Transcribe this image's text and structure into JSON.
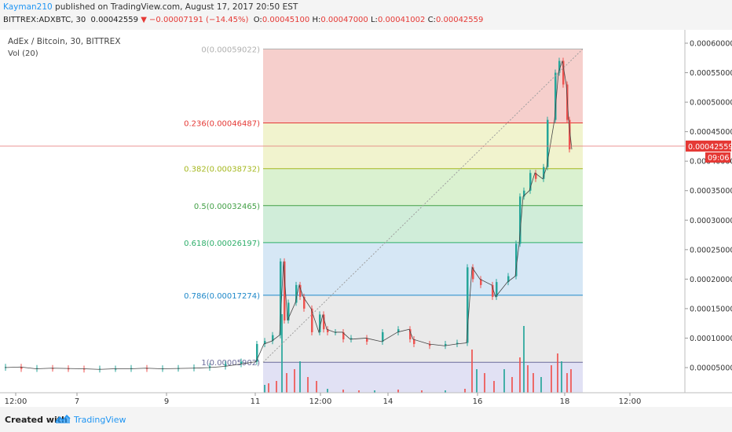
{
  "header": {
    "author": "Kayman210",
    "published_text": " published on TradingView.com, August 17, 2017 20:50 EST",
    "symbol": "BITTREX:ADXBTC, 30",
    "last_price": "0.00042559",
    "change": "▼ −0.00007191 (−14.45%)",
    "open_label": "O:",
    "open": "0.00045100",
    "high_label": "H:",
    "high": "0.00047000",
    "low_label": "L:",
    "low": "0.00041002",
    "close_label": "C:",
    "close": "0.00042559"
  },
  "chart": {
    "instrument_title": "AdEx / Bitcoin, 30, BITTREX",
    "volume_indicator": "Vol (20)",
    "price_badge": "0.00042559",
    "time_badge": "09:06",
    "colors": {
      "up": "#26a69a",
      "down": "#ef5350",
      "axis_text": "#333333",
      "trend_line": "#9e9e9e"
    }
  },
  "footer": {
    "created_with": "Created with",
    "brand": "TradingView"
  },
  "chart_data": {
    "type": "candlestick",
    "title": "AdEx / Bitcoin, 30, BITTREX",
    "y_axis_side": "right",
    "ylim": [
      0.0,
      0.00062
    ],
    "y_ticks": [
      "0.00005000",
      "0.00010000",
      "0.00015000",
      "0.00020000",
      "0.00025000",
      "0.00030000",
      "0.00035000",
      "0.00040000",
      "0.00045000",
      "0.00050000",
      "0.00055000",
      "0.00060000"
    ],
    "x_ticks": [
      "12:00",
      "7",
      "9",
      "11",
      "12:00",
      "14",
      "16",
      "18",
      "12:00"
    ],
    "fibonacci_retracement": [
      {
        "label": "0(0.00059022)",
        "price": 0.00059022,
        "color": "#b0b0b0"
      },
      {
        "label": "0.236(0.00046487)",
        "price": 0.00046487,
        "color": "#e53935"
      },
      {
        "label": "0.382(0.00038732)",
        "price": 0.00038732,
        "color": "#a6b820"
      },
      {
        "label": "0.5(0.00032465)",
        "price": 0.00032465,
        "color": "#43a047"
      },
      {
        "label": "0.618(0.00026197)",
        "price": 0.00026197,
        "color": "#2eae6a"
      },
      {
        "label": "0.786(0.00017274)",
        "price": 0.00017274,
        "color": "#1e88c9"
      },
      {
        "label": "1(0.00005902)",
        "price": 5.902e-05,
        "color": "#6a6a9a"
      }
    ],
    "price_series": [
      {
        "t": 0,
        "p": 5e-05
      },
      {
        "t": 20,
        "p": 5.1e-05
      },
      {
        "t": 40,
        "p": 4.8e-05
      },
      {
        "t": 60,
        "p": 4.9e-05
      },
      {
        "t": 80,
        "p": 4.85e-05
      },
      {
        "t": 100,
        "p": 4.8e-05
      },
      {
        "t": 120,
        "p": 4.7e-05
      },
      {
        "t": 140,
        "p": 4.8e-05
      },
      {
        "t": 160,
        "p": 4.8e-05
      },
      {
        "t": 180,
        "p": 4.9e-05
      },
      {
        "t": 200,
        "p": 4.8e-05
      },
      {
        "t": 220,
        "p": 4.85e-05
      },
      {
        "t": 240,
        "p": 4.9e-05
      },
      {
        "t": 260,
        "p": 5e-05
      },
      {
        "t": 280,
        "p": 5.2e-05
      },
      {
        "t": 300,
        "p": 5.6e-05
      },
      {
        "t": 320,
        "p": 6e-05
      },
      {
        "t": 330,
        "p": 9e-05
      },
      {
        "t": 340,
        "p": 9.5e-05
      },
      {
        "t": 350,
        "p": 0.000105
      },
      {
        "t": 355,
        "p": 0.00023
      },
      {
        "t": 360,
        "p": 0.00013
      },
      {
        "t": 370,
        "p": 0.00016
      },
      {
        "t": 375,
        "p": 0.00019
      },
      {
        "t": 380,
        "p": 0.00017
      },
      {
        "t": 390,
        "p": 0.00015
      },
      {
        "t": 400,
        "p": 0.00011
      },
      {
        "t": 405,
        "p": 0.00014
      },
      {
        "t": 410,
        "p": 0.000115
      },
      {
        "t": 420,
        "p": 0.00011
      },
      {
        "t": 430,
        "p": 0.00011
      },
      {
        "t": 440,
        "p": 9.8e-05
      },
      {
        "t": 460,
        "p": 0.0001
      },
      {
        "t": 480,
        "p": 9.4e-05
      },
      {
        "t": 500,
        "p": 0.00011
      },
      {
        "t": 515,
        "p": 0.000115
      },
      {
        "t": 520,
        "p": 9.8e-05
      },
      {
        "t": 540,
        "p": 9e-05
      },
      {
        "t": 560,
        "p": 8.7e-05
      },
      {
        "t": 575,
        "p": 9e-05
      },
      {
        "t": 588,
        "p": 9.2e-05
      },
      {
        "t": 595,
        "p": 0.00022
      },
      {
        "t": 605,
        "p": 0.0002
      },
      {
        "t": 620,
        "p": 0.00019
      },
      {
        "t": 625,
        "p": 0.00017
      },
      {
        "t": 640,
        "p": 0.000195
      },
      {
        "t": 650,
        "p": 0.000205
      },
      {
        "t": 655,
        "p": 0.00026
      },
      {
        "t": 660,
        "p": 0.00034
      },
      {
        "t": 668,
        "p": 0.00035
      },
      {
        "t": 675,
        "p": 0.00038
      },
      {
        "t": 685,
        "p": 0.00037
      },
      {
        "t": 690,
        "p": 0.00039
      },
      {
        "t": 700,
        "p": 0.00047
      },
      {
        "t": 705,
        "p": 0.00055
      },
      {
        "t": 710,
        "p": 0.00057
      },
      {
        "t": 715,
        "p": 0.00053
      },
      {
        "t": 718,
        "p": 0.00047
      },
      {
        "t": 722,
        "p": 0.00042
      }
    ],
    "volume_series": [
      {
        "t": 330,
        "v": 0.1
      },
      {
        "t": 335,
        "v": 0.12
      },
      {
        "t": 345,
        "v": 0.15
      },
      {
        "t": 352,
        "v": 1.0
      },
      {
        "t": 358,
        "v": 0.25
      },
      {
        "t": 368,
        "v": 0.3
      },
      {
        "t": 375,
        "v": 0.4
      },
      {
        "t": 385,
        "v": 0.2
      },
      {
        "t": 396,
        "v": 0.15
      },
      {
        "t": 410,
        "v": 0.05
      },
      {
        "t": 430,
        "v": 0.04
      },
      {
        "t": 450,
        "v": 0.03
      },
      {
        "t": 470,
        "v": 0.03
      },
      {
        "t": 500,
        "v": 0.04
      },
      {
        "t": 530,
        "v": 0.03
      },
      {
        "t": 560,
        "v": 0.03
      },
      {
        "t": 585,
        "v": 0.05
      },
      {
        "t": 594,
        "v": 0.55
      },
      {
        "t": 600,
        "v": 0.3
      },
      {
        "t": 610,
        "v": 0.25
      },
      {
        "t": 622,
        "v": 0.15
      },
      {
        "t": 635,
        "v": 0.3
      },
      {
        "t": 645,
        "v": 0.2
      },
      {
        "t": 655,
        "v": 0.45
      },
      {
        "t": 660,
        "v": 0.85
      },
      {
        "t": 665,
        "v": 0.35
      },
      {
        "t": 672,
        "v": 0.25
      },
      {
        "t": 682,
        "v": 0.2
      },
      {
        "t": 695,
        "v": 0.35
      },
      {
        "t": 703,
        "v": 0.5
      },
      {
        "t": 708,
        "v": 0.4
      },
      {
        "t": 715,
        "v": 0.25
      },
      {
        "t": 720,
        "v": 0.3
      }
    ]
  }
}
